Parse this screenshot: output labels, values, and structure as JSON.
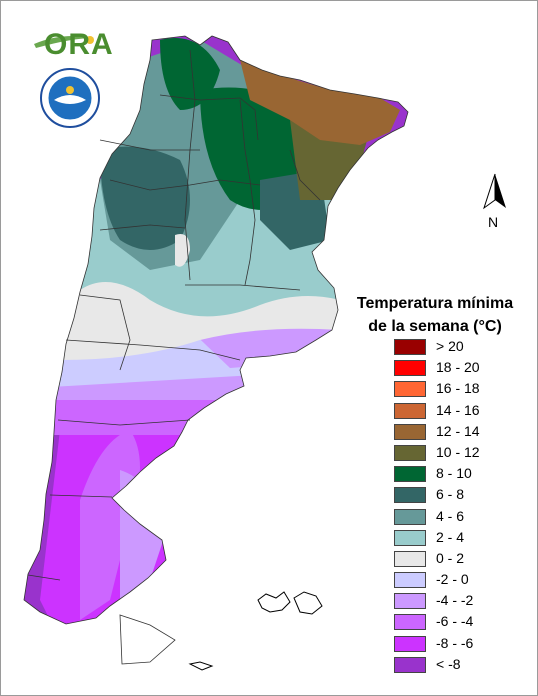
{
  "logo": {
    "text": "ORA"
  },
  "north_label": "N",
  "legend": {
    "title_line1": "Temperatura mínima",
    "title_line2": "de la semana (°C)",
    "items": [
      {
        "label": "> 20",
        "color": "#990000"
      },
      {
        "label": "18 - 20",
        "color": "#ff0000"
      },
      {
        "label": "16 - 18",
        "color": "#ff6633"
      },
      {
        "label": "14 - 16",
        "color": "#cc6633"
      },
      {
        "label": "12 - 14",
        "color": "#996633"
      },
      {
        "label": "10 - 12",
        "color": "#666633"
      },
      {
        "label": "8 - 10",
        "color": "#006633"
      },
      {
        "label": "6 - 8",
        "color": "#336666"
      },
      {
        "label": "4 - 6",
        "color": "#669999"
      },
      {
        "label": "2 - 4",
        "color": "#99cccc"
      },
      {
        "label": "0 - 2",
        "color": "#e8e8e8"
      },
      {
        "label": "-2 - 0",
        "color": "#ccccff"
      },
      {
        "label": "-4 - -2",
        "color": "#cc99ff"
      },
      {
        "label": "-6 - -4",
        "color": "#cc66ff"
      },
      {
        "label": "-8 - -6",
        "color": "#cc33ff"
      },
      {
        "label": "< -8",
        "color": "#9933cc"
      }
    ]
  }
}
